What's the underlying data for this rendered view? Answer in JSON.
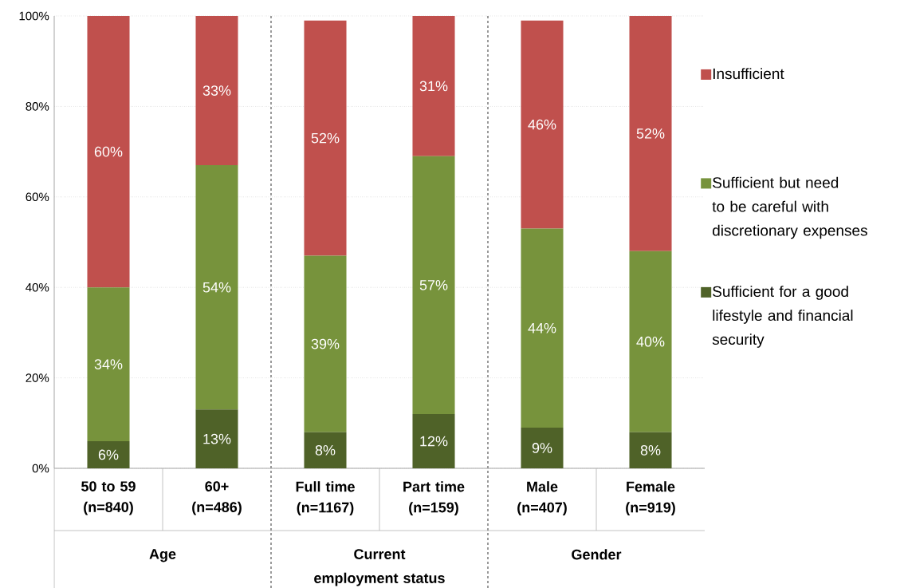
{
  "chart_data": {
    "type": "bar",
    "stacked": true,
    "categories": [
      "50 to 59 (n=840)",
      "60+ (n=486)",
      "Full time (n=1167)",
      "Part time (n=159)",
      "Male (n=407)",
      "Female (n=919)"
    ],
    "series": [
      {
        "name": "Sufficient for a good lifestyle and financial security",
        "color": "#4f6228",
        "values": [
          6,
          13,
          8,
          12,
          9,
          8
        ],
        "value_labels": [
          "6%",
          "13%",
          "8%",
          "12%",
          "9%",
          "8%"
        ]
      },
      {
        "name": "Sufficient but need to be careful with discretionary expenses",
        "color": "#77933c",
        "values": [
          34,
          54,
          39,
          57,
          44,
          40
        ],
        "value_labels": [
          "34%",
          "54%",
          "39%",
          "57%",
          "44%",
          "40%"
        ]
      },
      {
        "name": "Insufficient",
        "color": "#c0504d",
        "values": [
          60,
          33,
          52,
          31,
          46,
          52
        ],
        "value_labels": [
          "60%",
          "33%",
          "52%",
          "31%",
          "46%",
          "52%"
        ]
      }
    ],
    "ylim": [
      0,
      100
    ],
    "yticks": [
      {
        "value": 0,
        "label": "0%"
      },
      {
        "value": 20,
        "label": "20%"
      },
      {
        "value": 40,
        "label": "40%"
      },
      {
        "value": 60,
        "label": "60%"
      },
      {
        "value": 80,
        "label": "80%"
      },
      {
        "value": 100,
        "label": "100%"
      }
    ],
    "grid": "y",
    "legend": "right",
    "annotations": [
      "Age",
      "Current employment status",
      "Gender"
    ]
  }
}
